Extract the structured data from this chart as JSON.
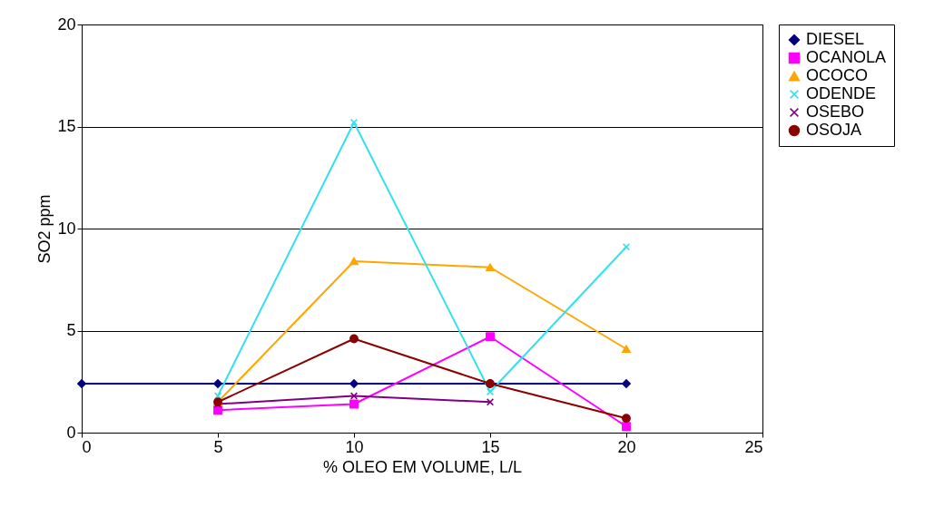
{
  "chart_data": {
    "type": "line",
    "xlabel": "% OLEO EM VOLUME, L/L",
    "ylabel": "SO2 ppm",
    "x": [
      0,
      5,
      10,
      15,
      20
    ],
    "xlim": [
      0,
      25
    ],
    "xticks": [
      0,
      5,
      10,
      15,
      20,
      25
    ],
    "ylim": [
      0,
      20
    ],
    "yticks": [
      0,
      5,
      10,
      15,
      20
    ],
    "grid": "y",
    "legend": "right",
    "series": [
      {
        "name": "DIESEL",
        "color": "#000080",
        "marker": "diamond",
        "values": [
          2.4,
          2.4,
          2.4,
          2.4,
          2.4
        ]
      },
      {
        "name": "OCANOLA",
        "color": "#ff00ff",
        "marker": "square",
        "values": [
          null,
          1.1,
          1.4,
          4.7,
          0.3
        ]
      },
      {
        "name": "OCOCO",
        "color": "#ffa500",
        "marker": "triangle",
        "values": [
          null,
          1.5,
          8.4,
          8.1,
          4.1
        ]
      },
      {
        "name": "ODENDE",
        "color": "#33e0f0",
        "marker": "cross",
        "values": [
          null,
          1.8,
          15.2,
          2.0,
          9.1
        ]
      },
      {
        "name": "OSEBO",
        "color": "#800080",
        "marker": "cross",
        "values": [
          null,
          1.4,
          1.8,
          1.5,
          null
        ]
      },
      {
        "name": "OSOJA",
        "color": "#8b0000",
        "marker": "circle",
        "values": [
          null,
          1.5,
          4.6,
          2.4,
          0.7
        ]
      }
    ]
  }
}
